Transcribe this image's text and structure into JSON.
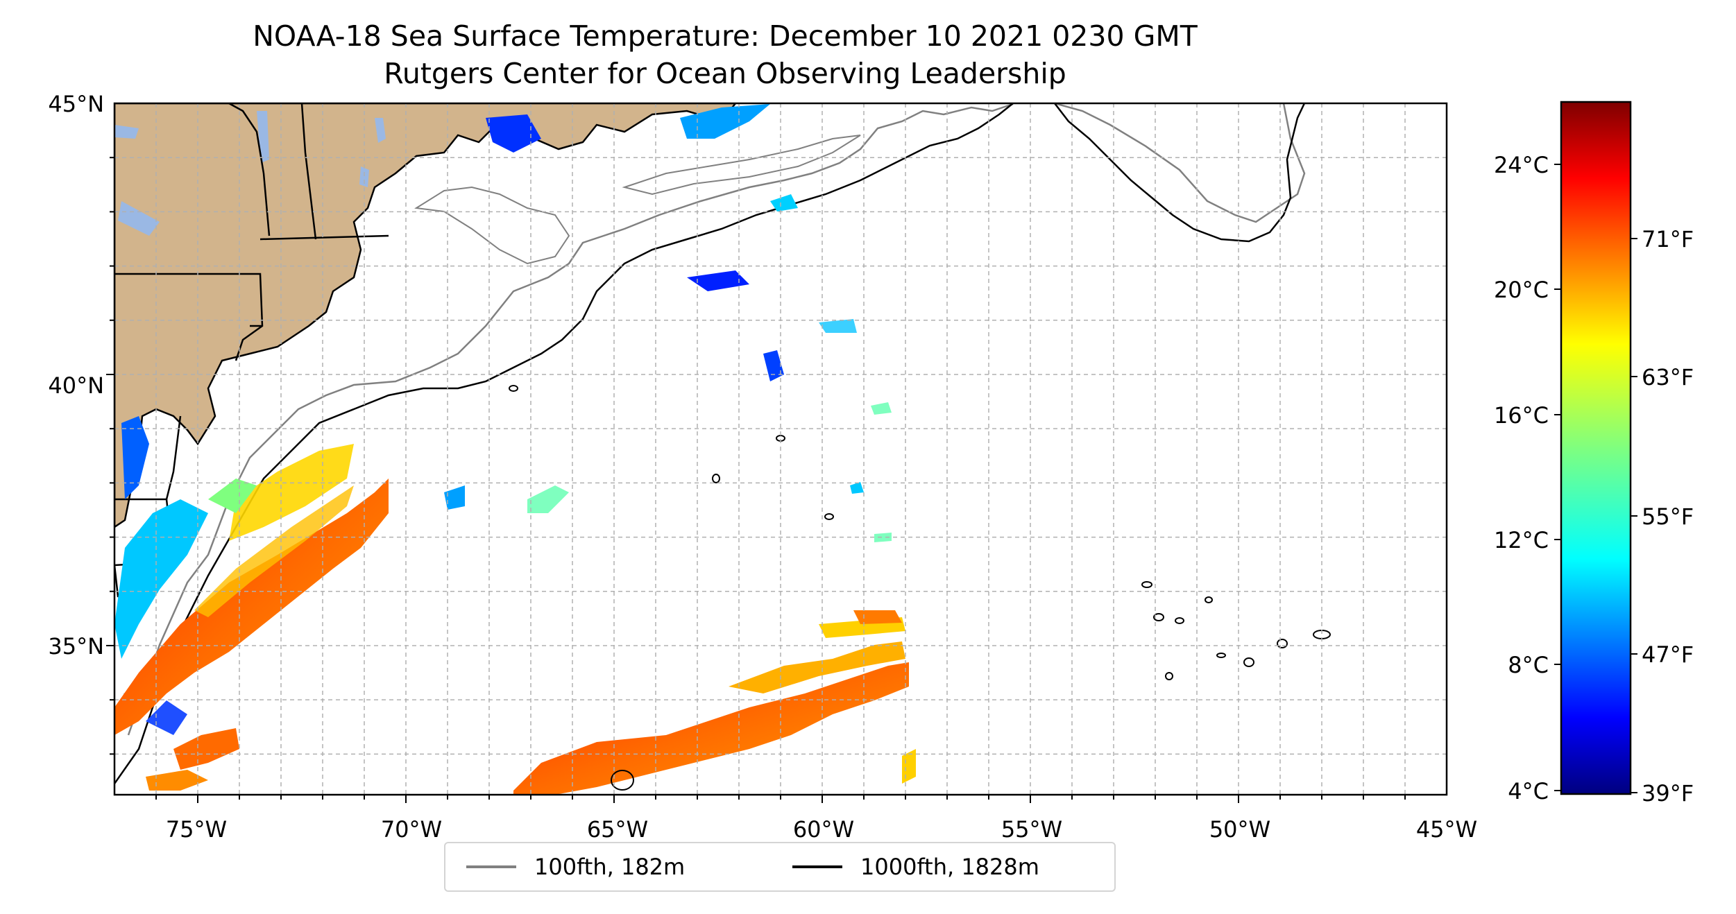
{
  "title_line1": "NOAA-18 Sea Surface Temperature: December 10 2021 0230 GMT",
  "title_line2": "Rutgers Center for Ocean Observing Leadership",
  "lon_labels": [
    "75°W",
    "70°W",
    "65°W",
    "60°W",
    "55°W",
    "50°W",
    "45°W"
  ],
  "lat_labels": [
    "45°N",
    "40°N",
    "35°N"
  ],
  "colorbar": {
    "celsius_labels": [
      "24°C",
      "20°C",
      "16°C",
      "12°C",
      "8°C",
      "4°C"
    ],
    "fahrenheit_labels": [
      "71°F",
      "63°F",
      "55°F",
      "47°F",
      "39°F"
    ]
  },
  "legend": {
    "items": [
      {
        "label": "100fth, 182m",
        "color": "#808080"
      },
      {
        "label": "1000fth, 1828m",
        "color": "#000000"
      }
    ]
  },
  "colors": {
    "land": "#d2b48c",
    "lakes": "#9ab8e4",
    "isobath_100": "#808080",
    "isobath_1000": "#000000"
  }
}
